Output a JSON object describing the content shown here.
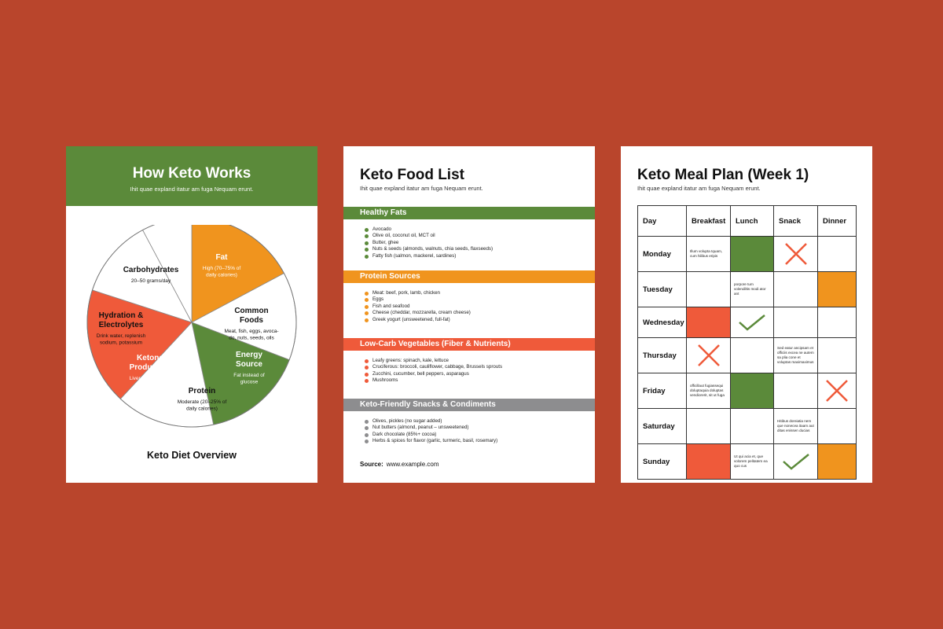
{
  "colors": {
    "background": "#b9452c",
    "green": "#5b8a3a",
    "orange": "#f0941e",
    "red": "#ef5a3a",
    "gray": "#8d8d8f"
  },
  "page1": {
    "title": "How Keto Works",
    "subtitle": "Ihit quae expland itatur am fuga Nequam erunt.",
    "footer": "Keto Diet Overview",
    "segments": [
      {
        "name": "Fat",
        "detail": "High (70–75% of daily calories)",
        "fill": "orange"
      },
      {
        "name": "Common Foods",
        "detail": "Meat, fish, eggs, avocado, nuts, seeds, oils",
        "fill": "white"
      },
      {
        "name": "Energy Source",
        "detail": "Fat instead of glucose",
        "fill": "green"
      },
      {
        "name": "Protein",
        "detail": "Moderate (20–25% of daily calories)",
        "fill": "white"
      },
      {
        "name": "Ketone Production",
        "detail": "Liver converts fats to ketones",
        "fill": "red"
      },
      {
        "name": "Hydration & Electrolytes",
        "detail": "Drink water, replenish sodium, potassium",
        "fill": "white"
      },
      {
        "name": "Carbohydrates",
        "detail": "20–50 grams/day",
        "fill": "white"
      }
    ]
  },
  "page2": {
    "title": "Keto Food List",
    "subtitle": "Ihit quae expland itatur am fuga Nequam erunt.",
    "sections": [
      {
        "heading": "Healthy Fats",
        "color": "green",
        "items": [
          "Avocado",
          "Olive oil, coconut oil, MCT oil",
          "Butter, ghee",
          "Nuts & seeds (almonds, walnuts, chia seeds, flaxseeds)",
          "Fatty fish (salmon, mackerel, sardines)"
        ]
      },
      {
        "heading": "Protein Sources",
        "color": "orange",
        "items": [
          "Meat: beef, pork, lamb, chicken",
          "Eggs",
          "Fish and seafood",
          "Cheese (cheddar, mozzarella, cream cheese)",
          "Greek yogurt (unsweetened, full-fat)"
        ]
      },
      {
        "heading": "Low-Carb Vegetables (Fiber & Nutrients)",
        "color": "red",
        "items": [
          "Leafy greens: spinach, kale, lettuce",
          "Cruciferous: broccoli, cauliflower, cabbage, Brussels sprouts",
          "Zucchini, cucumber, bell peppers, asparagus",
          "Mushrooms"
        ]
      },
      {
        "heading": "Keto-Friendly Snacks & Condiments",
        "color": "gray",
        "items": [
          "Olives, pickles (no sugar added)",
          "Nut butters (almond, peanut – unsweetened)",
          "Dark chocolate (85%+ cocoa)",
          "Herbs & spices for flavor (garlic, turmeric, basil, rosemary)"
        ]
      }
    ],
    "source_label": "Source:",
    "source_value": "www.example.com"
  },
  "page3": {
    "title": "Keto Meal Plan (Week 1)",
    "subtitle": "Ihit quae expland itatur am fuga Nequam erunt.",
    "columns": [
      "Day",
      "Breakfast",
      "Lunch",
      "Snack",
      "Dinner"
    ],
    "rows": [
      {
        "day": "Monday",
        "cells": [
          {
            "type": "text",
            "text": "Illum volupta tquam, cum hilibus eripis"
          },
          {
            "type": "fill",
            "color": "green"
          },
          {
            "type": "cross"
          },
          {
            "type": "empty"
          }
        ]
      },
      {
        "day": "Tuesday",
        "cells": [
          {
            "type": "empty"
          },
          {
            "type": "text",
            "text": "porpore tum volendiltis modi ator ant"
          },
          {
            "type": "empty"
          },
          {
            "type": "fill",
            "color": "orange"
          }
        ]
      },
      {
        "day": "Wednesday",
        "cells": [
          {
            "type": "fill",
            "color": "red"
          },
          {
            "type": "check"
          },
          {
            "type": "empty"
          },
          {
            "type": "empty"
          }
        ]
      },
      {
        "day": "Thursday",
        "cells": [
          {
            "type": "cross"
          },
          {
            "type": "empty"
          },
          {
            "type": "text",
            "text": "Sed eatur ancipsam et officiis excea ne autem sa plia cone et voluptas maximaximus"
          },
          {
            "type": "empty"
          }
        ]
      },
      {
        "day": "Friday",
        "cells": [
          {
            "type": "text",
            "text": "officillaut fugiassequi doluptaquia doluptas vendiorerit, sit ut fuga"
          },
          {
            "type": "fill",
            "color": "green"
          },
          {
            "type": "empty"
          },
          {
            "type": "cross"
          }
        ]
      },
      {
        "day": "Saturday",
        "cells": [
          {
            "type": "empty"
          },
          {
            "type": "empty"
          },
          {
            "type": "text",
            "text": "Hitibus doreiatia nem que nonecea itaam aut ditas enissen ducias"
          },
          {
            "type": "empty"
          }
        ]
      },
      {
        "day": "Sunday",
        "cells": [
          {
            "type": "fill",
            "color": "red"
          },
          {
            "type": "text",
            "text": "Ut qui acia et, que volorem pelitatem ea quo cus"
          },
          {
            "type": "check"
          },
          {
            "type": "fill",
            "color": "orange"
          }
        ]
      }
    ]
  }
}
